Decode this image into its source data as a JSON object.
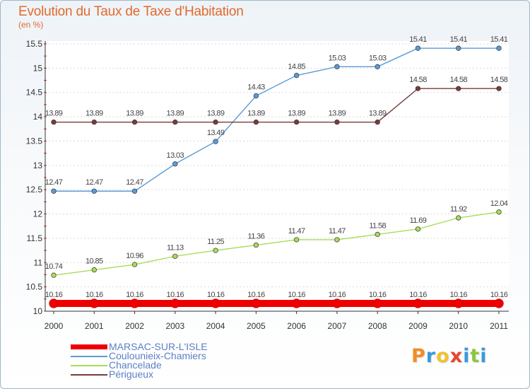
{
  "header": {
    "title": "Evolution du Taux de Taxe d'Habitation",
    "subtitle": "(en %)"
  },
  "logo": {
    "letters": [
      "P",
      "r",
      "o",
      "x",
      "i",
      "t",
      "i"
    ],
    "colors": [
      "#f28c28",
      "#3a9ad9",
      "#f2c12e",
      "#e8452c",
      "#3a9ad9",
      "#8cc63f",
      "#3a9ad9"
    ]
  },
  "chart_data": {
    "type": "line",
    "title": "Evolution du Taux de Taxe d'Habitation",
    "ylabel": "(en %)",
    "xlabel": "",
    "categories": [
      "2000",
      "2001",
      "2002",
      "2003",
      "2004",
      "2005",
      "2006",
      "2007",
      "2008",
      "2009",
      "2010",
      "2011"
    ],
    "ylim": [
      10,
      15.5
    ],
    "yticks": [
      "10",
      "10.5",
      "11",
      "11.5",
      "12",
      "12.5",
      "13",
      "13.5",
      "14",
      "14.5",
      "15",
      "15.5"
    ],
    "grid": "horizontal",
    "legend_position": "bottom",
    "series": [
      {
        "name": "MARSAC-SUR-L'ISLE",
        "color": "#ee0000",
        "values": [
          10.16,
          10.16,
          10.16,
          10.16,
          10.16,
          10.16,
          10.16,
          10.16,
          10.16,
          10.16,
          10.16,
          10.16
        ],
        "labels": [
          "10.16",
          "10.16",
          "10.16",
          "10.16",
          "10.16",
          "10.16",
          "10.16",
          "10.16",
          "10.16",
          "10.16",
          "10.16",
          "10.16"
        ]
      },
      {
        "name": "Coulounieix-Chamiers",
        "color": "#5b9bd5",
        "values": [
          12.47,
          12.47,
          12.47,
          13.03,
          13.49,
          14.43,
          14.85,
          15.03,
          15.03,
          15.41,
          15.41,
          15.41
        ],
        "labels": [
          "12.47",
          "12.47",
          "12.47",
          "13.03",
          "13.49",
          "14.43",
          "14.85",
          "15.03",
          "15.03",
          "15.41",
          "15.41",
          "15.41"
        ]
      },
      {
        "name": "Chancelade",
        "color": "#a8dc5a",
        "values": [
          10.74,
          10.85,
          10.96,
          11.13,
          11.25,
          11.36,
          11.47,
          11.47,
          11.58,
          11.69,
          11.92,
          12.04
        ],
        "labels": [
          "10.74",
          "10.85",
          "10.96",
          "11.13",
          "11.25",
          "11.36",
          "11.47",
          "11.47",
          "11.58",
          "11.69",
          "11.92",
          "12.04"
        ]
      },
      {
        "name": "Périgueux",
        "color": "#7a3b3b",
        "values": [
          13.89,
          13.89,
          13.89,
          13.89,
          13.89,
          13.89,
          13.89,
          13.89,
          13.89,
          14.58,
          14.58,
          14.58
        ],
        "labels": [
          "13.89",
          "13.89",
          "13.89",
          "13.89",
          "13.89",
          "13.89",
          "13.89",
          "13.89",
          "13.89",
          "14.58",
          "14.58",
          "14.58"
        ]
      }
    ]
  }
}
